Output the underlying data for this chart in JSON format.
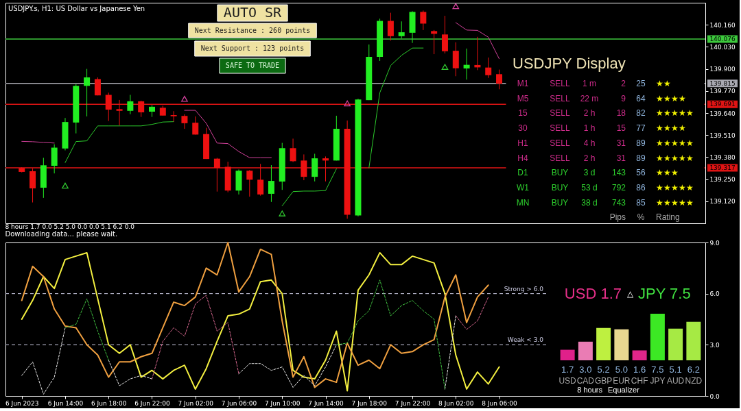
{
  "chart_data": [
    {
      "type": "candlestick",
      "title": "USDJPY.s, H1: US Dollar vs Japanese Yen",
      "x": [
        "2023-06-06T10:00",
        "2023-06-06T11:00",
        "2023-06-06T12:00",
        "2023-06-06T13:00",
        "2023-06-06T14:00",
        "2023-06-06T15:00",
        "2023-06-06T16:00",
        "2023-06-06T17:00",
        "2023-06-06T18:00",
        "2023-06-06T19:00",
        "2023-06-06T20:00",
        "2023-06-06T21:00",
        "2023-06-06T22:00",
        "2023-06-06T23:00",
        "2023-06-07T00:00",
        "2023-06-07T01:00",
        "2023-06-07T02:00",
        "2023-06-07T03:00",
        "2023-06-07T04:00",
        "2023-06-07T05:00",
        "2023-06-07T06:00",
        "2023-06-07T07:00",
        "2023-06-07T08:00",
        "2023-06-07T09:00",
        "2023-06-07T10:00",
        "2023-06-07T11:00",
        "2023-06-07T12:00",
        "2023-06-07T13:00",
        "2023-06-07T14:00",
        "2023-06-07T15:00",
        "2023-06-07T16:00",
        "2023-06-07T17:00",
        "2023-06-07T18:00",
        "2023-06-07T19:00",
        "2023-06-07T20:00",
        "2023-06-07T21:00",
        "2023-06-07T22:00",
        "2023-06-07T23:00",
        "2023-06-08T00:00",
        "2023-06-08T01:00",
        "2023-06-08T02:00",
        "2023-06-08T03:00",
        "2023-06-08T04:00",
        "2023-06-08T05:00",
        "2023-06-08T06:00"
      ],
      "xlim": [
        "2023-06-06T08:30",
        "2023-06-09T01:00"
      ],
      "ylim": [
        138.99,
        140.29
      ],
      "yticks": [
        {
          "value": 140.16,
          "label": "140.160"
        },
        {
          "value": 140.03,
          "label": "140.030"
        },
        {
          "value": 139.9,
          "label": "139.900"
        },
        {
          "value": 139.77,
          "label": "139.770"
        },
        {
          "value": 139.64,
          "label": "139.640"
        },
        {
          "value": 139.51,
          "label": "139.510"
        },
        {
          "value": 139.38,
          "label": "139.380"
        },
        {
          "value": 139.25,
          "label": "139.250"
        },
        {
          "value": 139.12,
          "label": "139.120"
        }
      ],
      "tick_labels": "y",
      "ohlc": [
        [
          139.316,
          139.32,
          139.29,
          139.293
        ],
        [
          139.297,
          139.313,
          139.113,
          139.196
        ],
        [
          139.2,
          139.376,
          139.14,
          139.332
        ],
        [
          139.329,
          139.456,
          139.284,
          139.436
        ],
        [
          139.431,
          139.611,
          139.42,
          139.587
        ],
        [
          139.584,
          139.81,
          139.52,
          139.8
        ],
        [
          139.8,
          139.9,
          139.62,
          139.85
        ],
        [
          139.84,
          139.85,
          139.744,
          139.744
        ],
        [
          139.747,
          139.76,
          139.593,
          139.66
        ],
        [
          139.663,
          139.717,
          139.567,
          139.653
        ],
        [
          139.653,
          139.747,
          139.633,
          139.709
        ],
        [
          139.709,
          139.713,
          139.617,
          139.644
        ],
        [
          139.648,
          139.687,
          139.617,
          139.677
        ],
        [
          139.671,
          139.683,
          139.625,
          139.625
        ],
        [
          139.628,
          139.651,
          139.589,
          139.621
        ],
        [
          139.623,
          139.633,
          139.547,
          139.58
        ],
        [
          139.583,
          139.62,
          139.513,
          139.513
        ],
        [
          139.516,
          139.553,
          139.369,
          139.369
        ],
        [
          139.371,
          139.376,
          139.177,
          139.317
        ],
        [
          139.323,
          139.353,
          139.173,
          139.183
        ],
        [
          139.183,
          139.307,
          139.16,
          139.3
        ],
        [
          139.3,
          139.304,
          139.147,
          139.247
        ],
        [
          139.247,
          139.34,
          139.153,
          139.16
        ],
        [
          139.164,
          139.333,
          139.116,
          139.24
        ],
        [
          139.236,
          139.464,
          139.187,
          139.433
        ],
        [
          139.433,
          139.489,
          139.351,
          139.356
        ],
        [
          139.36,
          139.396,
          139.244,
          139.264
        ],
        [
          139.264,
          139.4,
          139.237,
          139.373
        ],
        [
          139.373,
          139.384,
          139.237,
          139.36
        ],
        [
          139.36,
          139.624,
          139.36,
          139.547
        ],
        [
          139.547,
          139.596,
          139.017,
          139.04
        ],
        [
          139.036,
          139.724,
          139.031,
          139.72
        ],
        [
          139.716,
          140.044,
          139.716,
          139.971
        ],
        [
          139.971,
          140.196,
          139.947,
          140.183
        ],
        [
          140.183,
          140.231,
          140.067,
          140.093
        ],
        [
          140.093,
          140.18,
          140.08,
          140.116
        ],
        [
          140.113,
          140.24,
          140.053,
          140.236
        ],
        [
          140.236,
          140.244,
          140.129,
          140.167
        ],
        [
          140.123,
          140.129,
          139.987,
          140.107
        ],
        [
          140.103,
          140.213,
          139.991,
          140.004
        ],
        [
          140.007,
          140.057,
          139.857,
          139.904
        ],
        [
          139.903,
          140.02,
          139.837,
          139.924
        ],
        [
          139.923,
          140.089,
          139.893,
          139.909
        ],
        [
          139.908,
          139.967,
          139.847,
          139.863
        ],
        [
          139.869,
          139.896,
          139.78,
          139.813
        ]
      ],
      "colors": [
        "#ee1111",
        "#ee1111",
        "#22ee22",
        "#22ee22",
        "#22ee22",
        "#22ee22",
        "#22ee22",
        "#ee1111",
        "#ee1111",
        "#ee1111",
        "#22ee22",
        "#ee1111",
        "#22ee22",
        "#ee1111",
        "#ee1111",
        "#ee1111",
        "#ee1111",
        "#ee1111",
        "#ee1111",
        "#ee1111",
        "#22ee22",
        "#ee1111",
        "#ee1111",
        "#22ee22",
        "#22ee22",
        "#ee1111",
        "#ee1111",
        "#22ee22",
        "#ee1111",
        "#22ee22",
        "#ee1111",
        "#22ee22",
        "#22ee22",
        "#22ee22",
        "#ee1111",
        "#22ee22",
        "#22ee22",
        "#ee1111",
        "#ee1111",
        "#ee1111",
        "#ee1111",
        "#22ee22",
        "#ee1111",
        "#ee1111",
        "#ee1111"
      ],
      "series": [
        {
          "type": "line",
          "color": "#2ccc2c",
          "values": [
            null,
            null,
            null,
            null,
            139.348,
            139.472,
            139.476,
            139.564,
            139.564,
            139.564,
            139.564,
            139.564,
            139.573,
            139.587,
            139.589,
            null,
            null,
            null,
            null,
            null,
            null,
            null,
            null,
            null,
            139.093,
            139.177,
            139.18,
            139.18,
            139.183,
            139.311,
            null,
            null,
            139.317,
            139.76,
            139.92,
            139.98,
            140.023,
            140.023,
            null,
            null,
            null,
            null,
            null,
            null,
            null
          ]
        },
        {
          "type": "line",
          "color": "#d0409a",
          "values": [
            139.473,
            139.471,
            139.467,
            139.463,
            null,
            null,
            null,
            null,
            null,
            null,
            null,
            null,
            null,
            null,
            null,
            139.656,
            139.656,
            139.58,
            139.463,
            139.46,
            139.413,
            139.377,
            139.377,
            139.377,
            null,
            null,
            null,
            null,
            null,
            null,
            null,
            null,
            null,
            null,
            null,
            null,
            null,
            null,
            null,
            null,
            140.173,
            140.129,
            140.127,
            140.087,
            139.96
          ]
        },
        {
          "type": "scatter",
          "marker": "triangle",
          "color": "#30c830",
          "x": [
            "2023-06-06T14:00",
            "2023-06-07T10:00",
            "2023-06-08T01:00"
          ],
          "values": [
            139.212,
            139.048,
            139.912
          ]
        },
        {
          "type": "scatter",
          "marker": "triangle",
          "color": "#d0409a",
          "x": [
            "2023-06-07T01:00",
            "2023-06-07T16:00",
            "2023-06-08T02:00"
          ],
          "values": [
            139.724,
            139.697,
            140.27
          ]
        }
      ],
      "ref_lines": [
        {
          "axis": "y",
          "value": 140.076,
          "label": "140.076",
          "color": "#3cc83c"
        },
        {
          "axis": "y",
          "value": 139.815,
          "label": "139.815",
          "color": "#a8a8b0"
        },
        {
          "axis": "y",
          "value": 139.691,
          "label": "139.691",
          "color": "#e01414"
        },
        {
          "axis": "y",
          "value": 139.317,
          "label": "139.317",
          "color": "#e01414"
        }
      ],
      "annotations": [
        "AUTO SR",
        "Next Resistance : 260 points",
        "Next Support : 123 points",
        "SAFE TO TRADE"
      ]
    },
    {
      "type": "other",
      "title": "USDJPY Display",
      "y_categories": [
        "M1",
        "M5",
        "15",
        "30",
        "H1",
        "H4",
        "D1",
        "W1",
        "MN"
      ],
      "categories": [
        null,
        null,
        "Pips",
        "%",
        "Rating"
      ],
      "cell_labels": [
        [
          "SELL",
          "1 m",
          "2",
          "25",
          "★★"
        ],
        [
          "SELL",
          "22 m",
          "9",
          "64",
          "★★★★"
        ],
        [
          "SELL",
          "2 h",
          "18",
          "82",
          "★★★★★"
        ],
        [
          "SELL",
          "1 h",
          "15",
          "77",
          "★★★★"
        ],
        [
          "SELL",
          "4 h",
          "31",
          "89",
          "★★★★★"
        ],
        [
          "SELL",
          "2 h",
          "31",
          "89",
          "★★★★★"
        ],
        [
          "BUY",
          "3 d",
          "143",
          "56",
          "★★★"
        ],
        [
          "BUY",
          "53 d",
          "792",
          "86",
          "★★★★★"
        ],
        [
          "BUY",
          "38 d",
          "743",
          "85",
          "★★★★★"
        ]
      ],
      "colors": [
        "#d02c8c",
        "#d02c8c",
        "#d02c8c",
        "#d02c8c",
        "#d02c8c",
        "#d02c8c",
        "#2ed22e",
        "#2ed22e",
        "#2ed22e"
      ]
    },
    {
      "type": "line",
      "title": "8 hours 1.7 0.0 5.2 5.0 0.0 0.0 5.1 6.2 0.0",
      "annotations": [
        "Downloading data... please wait."
      ],
      "x": [
        "2023-06-06T10:00",
        "2023-06-06T11:00",
        "2023-06-06T12:00",
        "2023-06-06T13:00",
        "2023-06-06T14:00",
        "2023-06-06T15:00",
        "2023-06-06T16:00",
        "2023-06-06T17:00",
        "2023-06-06T18:00",
        "2023-06-06T19:00",
        "2023-06-06T20:00",
        "2023-06-06T21:00",
        "2023-06-06T22:00",
        "2023-06-06T23:00",
        "2023-06-07T00:00",
        "2023-06-07T01:00",
        "2023-06-07T02:00",
        "2023-06-07T03:00",
        "2023-06-07T04:00",
        "2023-06-07T05:00",
        "2023-06-07T06:00",
        "2023-06-07T07:00",
        "2023-06-07T08:00",
        "2023-06-07T09:00",
        "2023-06-07T10:00",
        "2023-06-07T11:00",
        "2023-06-07T12:00",
        "2023-06-07T13:00",
        "2023-06-07T14:00",
        "2023-06-07T15:00",
        "2023-06-07T16:00",
        "2023-06-07T17:00",
        "2023-06-07T18:00",
        "2023-06-07T19:00",
        "2023-06-07T20:00",
        "2023-06-07T21:00",
        "2023-06-07T22:00",
        "2023-06-07T23:00",
        "2023-06-08T00:00",
        "2023-06-08T01:00",
        "2023-06-08T02:00",
        "2023-06-08T03:00",
        "2023-06-08T04:00",
        "2023-06-08T05:00",
        "2023-06-08T06:00"
      ],
      "xlim": [
        "2023-06-06T08:30",
        "2023-06-09T01:00"
      ],
      "xticks": [
        {
          "value": "2023-06-06T10:00",
          "label": "6 Jun 2023"
        },
        {
          "value": "2023-06-06T14:00",
          "label": "6 Jun 14:00"
        },
        {
          "value": "2023-06-06T18:00",
          "label": "6 Jun 18:00"
        },
        {
          "value": "2023-06-06T22:00",
          "label": "6 Jun 22:00"
        },
        {
          "value": "2023-06-07T02:00",
          "label": "7 Jun 02:00"
        },
        {
          "value": "2023-06-07T06:00",
          "label": "7 Jun 06:00"
        },
        {
          "value": "2023-06-07T10:00",
          "label": "7 Jun 10:00"
        },
        {
          "value": "2023-06-07T14:00",
          "label": "7 Jun 14:00"
        },
        {
          "value": "2023-06-07T18:00",
          "label": "7 Jun 18:00"
        },
        {
          "value": "2023-06-07T22:00",
          "label": "7 Jun 22:00"
        },
        {
          "value": "2023-06-08T02:00",
          "label": "8 Jun 02:00"
        },
        {
          "value": "2023-06-08T06:00",
          "label": "8 Jun 06:00"
        }
      ],
      "ylim": [
        0,
        9
      ],
      "yticks": [
        {
          "value": 0,
          "label": "0.0"
        },
        {
          "value": 3,
          "label": "3.0"
        },
        {
          "value": 6,
          "label": "6.0"
        },
        {
          "value": 9,
          "label": "9.0"
        }
      ],
      "series": [
        {
          "color": "#f4f040",
          "values": [
            4.5,
            5.6,
            7.0,
            6.3,
            8.0,
            8.2,
            8.4,
            5.7,
            3.0,
            2.5,
            3.0,
            1.1,
            1.5,
            1.0,
            1.5,
            1.8,
            0.4,
            1.6,
            3.2,
            4.7,
            4.8,
            5.1,
            6.7,
            6.8,
            6.0,
            1.5,
            1.1,
            1.0,
            2.1,
            3.8,
            0.3,
            6.2,
            7.1,
            8.4,
            7.7,
            7.7,
            8.2,
            8.0,
            7.8,
            6.0,
            2.4,
            0.4,
            1.4,
            0.7,
            1.7
          ]
        },
        {
          "color": "#f0a040",
          "values": [
            5.6,
            7.6,
            7.0,
            5.1,
            4.1,
            4.0,
            3.0,
            2.4,
            1.1,
            2.0,
            2.0,
            2.3,
            2.5,
            4.0,
            5.5,
            5.3,
            5.8,
            7.5,
            7.1,
            9.0,
            6.1,
            7.0,
            8.6,
            8.3,
            4.4,
            1.1,
            2.3,
            0.5,
            1.0,
            0.8,
            3.1,
            1.8,
            2.1,
            1.6,
            3.0,
            2.5,
            2.6,
            3.0,
            3.3,
            5.8,
            7.1,
            4.3,
            5.8,
            6.5,
            null
          ]
        },
        {
          "color": "#e6e6e6",
          "line_style": "dashed",
          "values": [
            1.2,
            2.0,
            0.1,
            1.1,
            4.0,
            null,
            null,
            null,
            2.1,
            0.6,
            1.0,
            1.2,
            1.0,
            null,
            null,
            null,
            null,
            null,
            null,
            null,
            1.3,
            1.9,
            1.9,
            1.5,
            1.7,
            0.5,
            1.2,
            0.6,
            1.7,
            3.0,
            null,
            null,
            null,
            null,
            null,
            null,
            null,
            null,
            null,
            0.4,
            4.7,
            null,
            null,
            null,
            null
          ]
        },
        {
          "color": "#40c040",
          "line_style": "dashed",
          "values": [
            null,
            null,
            null,
            null,
            4.0,
            4.2,
            5.7,
            3.8,
            2.1,
            null,
            null,
            null,
            null,
            null,
            null,
            null,
            null,
            null,
            null,
            null,
            null,
            null,
            null,
            null,
            null,
            null,
            null,
            null,
            null,
            3.0,
            3.1,
            4.4,
            5.0,
            6.8,
            4.7,
            5.3,
            5.6,
            5.0,
            4.5,
            0.4,
            null,
            null,
            null,
            null,
            null
          ]
        },
        {
          "color": "#d86890",
          "line_style": "dashed",
          "values": [
            null,
            null,
            null,
            null,
            null,
            null,
            null,
            null,
            null,
            null,
            null,
            null,
            1.0,
            3.2,
            4.0,
            3.5,
            5.4,
            5.9,
            3.8,
            4.3,
            1.3,
            null,
            null,
            null,
            null,
            null,
            null,
            null,
            null,
            null,
            null,
            null,
            null,
            null,
            null,
            null,
            null,
            null,
            null,
            null,
            4.7,
            3.9,
            4.4,
            5.8,
            null
          ]
        }
      ],
      "ref_lines": [
        {
          "axis": "y",
          "value": 6,
          "label": "Strong > 6.0",
          "color": "#d0d0e8",
          "line_style": "dashed"
        },
        {
          "axis": "y",
          "value": 3,
          "label": "Weak < 3.0",
          "color": "#d0d0e8",
          "line_style": "dashed"
        }
      ]
    },
    {
      "type": "bar",
      "categories": [
        "USD",
        "CAD",
        "GBP",
        "EUR",
        "CHF",
        "JPY",
        "AUD",
        "NZD"
      ],
      "values": [
        1.7,
        3.0,
        5.2,
        5.0,
        1.6,
        7.5,
        5.1,
        6.2
      ],
      "value_labels": [
        "1.7",
        "3.0",
        "5.2",
        "5.0",
        "1.6",
        "7.5",
        "5.1",
        "6.2"
      ],
      "colors": [
        "#e0208a",
        "#ea7cb4",
        "#bef040",
        "#e8d690",
        "#e0268a",
        "#3ce824",
        "#a6ea44",
        "#a6ea44"
      ],
      "annotations": [
        "USD 1.7",
        "△",
        "JPY 7.5",
        "8 hours",
        "Equalizer"
      ]
    }
  ]
}
